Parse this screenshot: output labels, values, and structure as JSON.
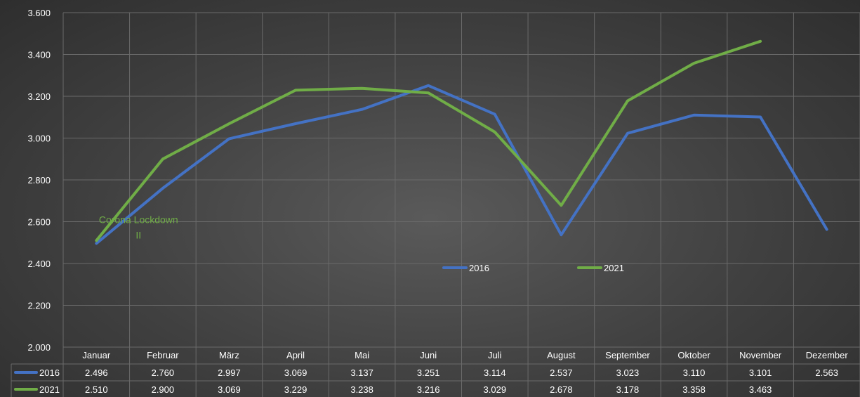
{
  "chart_data": {
    "type": "line",
    "categories": [
      "Januar",
      "Februar",
      "März",
      "April",
      "Mai",
      "Juni",
      "Juli",
      "August",
      "September",
      "Oktober",
      "November",
      "Dezember"
    ],
    "y_ticks": [
      "2.000",
      "2.200",
      "2.400",
      "2.600",
      "2.800",
      "3.000",
      "3.200",
      "3.400",
      "3.600"
    ],
    "ylim": [
      2000,
      3600
    ],
    "grid": true,
    "legend_position": "center",
    "series": [
      {
        "name": "2016",
        "color": "#4472c4",
        "values": [
          2496,
          2760,
          2997,
          3069,
          3137,
          3251,
          3114,
          2537,
          3023,
          3110,
          3101,
          2563
        ],
        "labels": [
          "2.496",
          "2.760",
          "2.997",
          "3.069",
          "3.137",
          "3.251",
          "3.114",
          "2.537",
          "3.023",
          "3.110",
          "3.101",
          "2.563"
        ]
      },
      {
        "name": "2021",
        "color": "#70ad47",
        "values": [
          2510,
          2900,
          3069,
          3229,
          3238,
          3216,
          3029,
          2678,
          3178,
          3358,
          3463,
          null
        ],
        "labels": [
          "2.510",
          "2.900",
          "3.069",
          "3.229",
          "3.238",
          "3.216",
          "3.029",
          "2.678",
          "3.178",
          "3.358",
          "3.463",
          ""
        ]
      }
    ],
    "annotations": [
      {
        "lines": [
          "Corona Lockdown",
          "II"
        ],
        "x_category": "Januar",
        "y_value": 2600
      }
    ]
  }
}
